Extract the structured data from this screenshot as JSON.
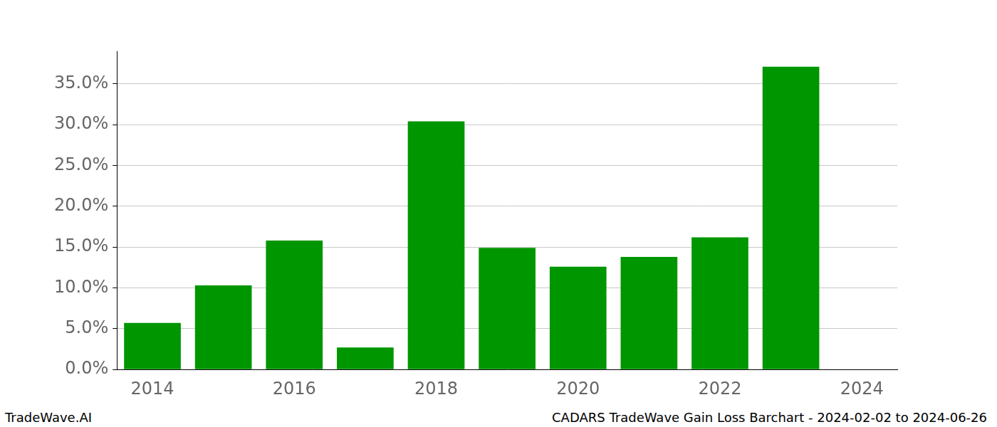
{
  "chart_data": {
    "type": "bar",
    "title": "CADARS TradeWave Gain Loss Barchart - 2024-02-02 to 2024-06-26",
    "annotations": [
      "TradeWave.AI"
    ],
    "categories": [
      "2014",
      null,
      "2016",
      null,
      "2018",
      null,
      "2020",
      null,
      "2022",
      null,
      "2024"
    ],
    "values": [
      5.7,
      10.3,
      15.8,
      2.7,
      30.4,
      14.9,
      12.6,
      13.8,
      16.2,
      37.1,
      null
    ],
    "color": "#009600",
    "ylim": [
      0,
      39
    ],
    "yticks": [
      {
        "value": 0,
        "label": "0.0%"
      },
      {
        "value": 5,
        "label": "5.0%"
      },
      {
        "value": 10,
        "label": "10.0%"
      },
      {
        "value": 15,
        "label": "15.0%"
      },
      {
        "value": 20,
        "label": "20.0%"
      },
      {
        "value": 25,
        "label": "25.0%"
      },
      {
        "value": 30,
        "label": "30.0%"
      },
      {
        "value": 35,
        "label": "35.0%"
      }
    ],
    "grid": true
  }
}
